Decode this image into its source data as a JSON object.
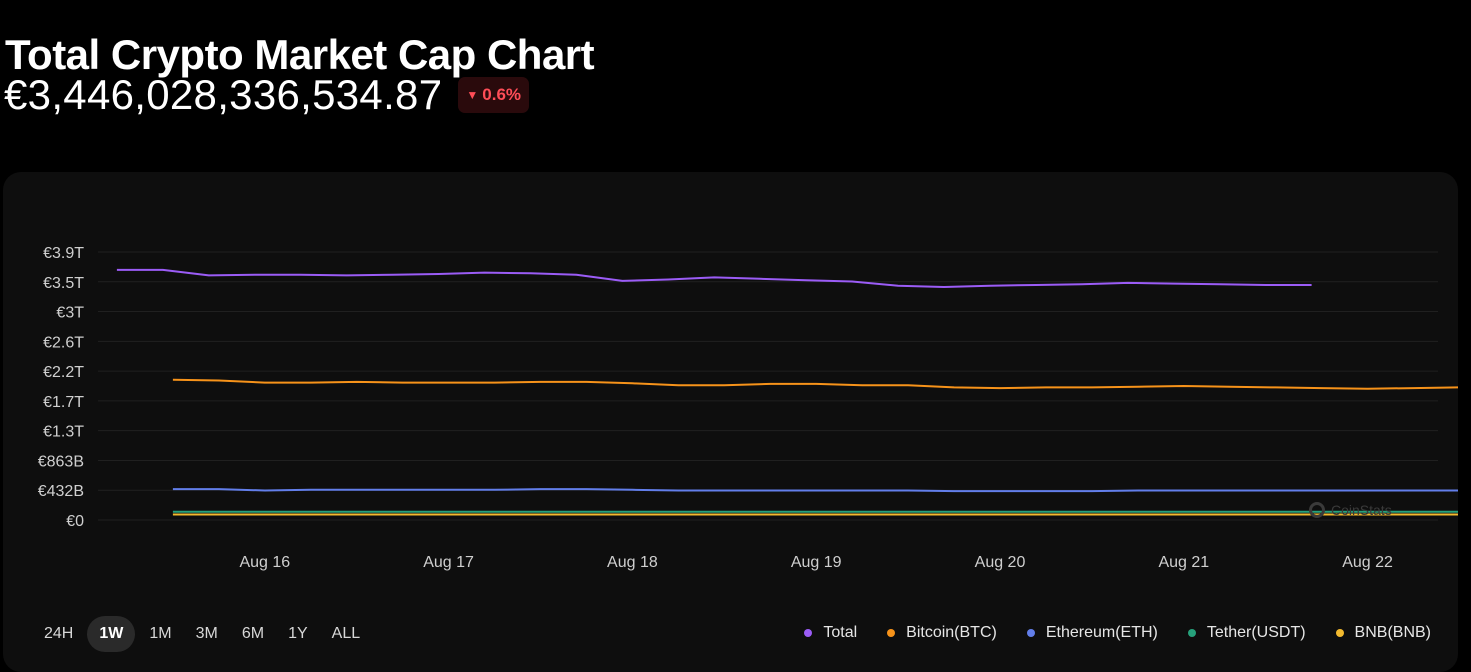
{
  "header": {
    "title": "Total Crypto Market Cap Chart",
    "price": "€3,446,028,336,534.87",
    "change": "0.6%",
    "change_direction": "down",
    "change_color": "#ff4d57"
  },
  "periods": [
    {
      "label": "24H",
      "active": false
    },
    {
      "label": "1W",
      "active": true
    },
    {
      "label": "1M",
      "active": false
    },
    {
      "label": "3M",
      "active": false
    },
    {
      "label": "6M",
      "active": false
    },
    {
      "label": "1Y",
      "active": false
    },
    {
      "label": "ALL",
      "active": false
    }
  ],
  "watermark": "CoinStats",
  "chart_data": {
    "type": "line",
    "title": "",
    "xlabel": "",
    "ylabel": "",
    "x": [
      "Aug 15 12:00",
      "Aug 15 18:00",
      "Aug 16 00:00",
      "Aug 16 06:00",
      "Aug 16 12:00",
      "Aug 16 18:00",
      "Aug 17 00:00",
      "Aug 17 06:00",
      "Aug 17 12:00",
      "Aug 17 18:00",
      "Aug 18 00:00",
      "Aug 18 06:00",
      "Aug 18 12:00",
      "Aug 18 18:00",
      "Aug 19 00:00",
      "Aug 19 06:00",
      "Aug 19 12:00",
      "Aug 19 18:00",
      "Aug 20 00:00",
      "Aug 20 06:00",
      "Aug 20 12:00",
      "Aug 20 18:00",
      "Aug 21 00:00",
      "Aug 21 06:00",
      "Aug 21 12:00",
      "Aug 21 18:00",
      "Aug 22 00:00",
      "Aug 22 06:00",
      "Aug 22 12:00"
    ],
    "x_ticks": [
      "Aug 16",
      "Aug 17",
      "Aug 18",
      "Aug 19",
      "Aug 20",
      "Aug 21",
      "Aug 22"
    ],
    "y_ticks": [
      "€0",
      "€432B",
      "€863B",
      "€1.3T",
      "€1.7T",
      "€2.2T",
      "€2.6T",
      "€3T",
      "€3.5T",
      "€3.9T"
    ],
    "ylim": [
      0,
      3.9
    ],
    "y_unit": "€ trillions",
    "grid": true,
    "legend_position": "bottom-right",
    "series": [
      {
        "name": "Total",
        "color": "#9b5cf6",
        "values": [
          3.64,
          3.64,
          3.56,
          3.57,
          3.57,
          3.56,
          3.57,
          3.58,
          3.6,
          3.59,
          3.57,
          3.48,
          3.5,
          3.53,
          3.51,
          3.49,
          3.47,
          3.41,
          3.39,
          3.41,
          3.42,
          3.43,
          3.45,
          3.44,
          3.43,
          3.42,
          3.42,
          null,
          null
        ]
      },
      {
        "name": "Bitcoin(BTC)",
        "color": "#f7931a",
        "values": [
          2.04,
          2.03,
          2.0,
          2.0,
          2.01,
          2.0,
          2.0,
          2.0,
          2.01,
          2.01,
          1.99,
          1.96,
          1.96,
          1.98,
          1.98,
          1.96,
          1.96,
          1.93,
          1.92,
          1.93,
          1.93,
          1.94,
          1.95,
          1.94,
          1.93,
          1.92,
          1.91,
          1.92,
          1.93
        ]
      },
      {
        "name": "Ethereum(ETH)",
        "color": "#627eea",
        "values": [
          0.45,
          0.45,
          0.43,
          0.44,
          0.44,
          0.44,
          0.44,
          0.44,
          0.45,
          0.45,
          0.44,
          0.43,
          0.43,
          0.43,
          0.43,
          0.43,
          0.43,
          0.42,
          0.42,
          0.42,
          0.42,
          0.43,
          0.43,
          0.43,
          0.43,
          0.43,
          0.43,
          0.43,
          0.43
        ]
      },
      {
        "name": "Tether(USDT)",
        "color": "#26a17b",
        "values": [
          0.12,
          0.12,
          0.12,
          0.12,
          0.12,
          0.12,
          0.12,
          0.12,
          0.12,
          0.12,
          0.12,
          0.12,
          0.12,
          0.12,
          0.12,
          0.12,
          0.12,
          0.12,
          0.12,
          0.12,
          0.12,
          0.12,
          0.12,
          0.12,
          0.12,
          0.12,
          0.12,
          0.12,
          0.12
        ]
      },
      {
        "name": "BNB(BNB)",
        "color": "#f3ba2f",
        "values": [
          0.08,
          0.08,
          0.08,
          0.08,
          0.08,
          0.08,
          0.08,
          0.08,
          0.08,
          0.08,
          0.08,
          0.08,
          0.08,
          0.08,
          0.08,
          0.08,
          0.08,
          0.08,
          0.08,
          0.08,
          0.08,
          0.08,
          0.08,
          0.08,
          0.08,
          0.08,
          0.08,
          0.08,
          0.08
        ]
      }
    ]
  }
}
